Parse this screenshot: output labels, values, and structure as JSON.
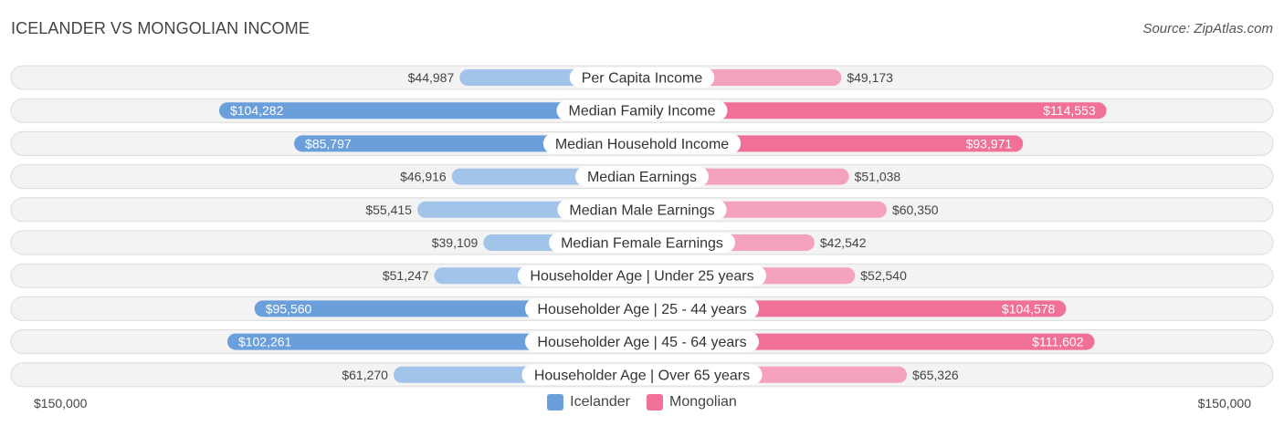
{
  "header": {
    "title": "ICELANDER VS MONGOLIAN INCOME",
    "source": "Source: ZipAtlas.com"
  },
  "chart_data": {
    "type": "bar",
    "orientation": "horizontal-diverging",
    "title": "ICELANDER VS MONGOLIAN INCOME",
    "categories": [
      "Per Capita Income",
      "Median Family Income",
      "Median Household Income",
      "Median Earnings",
      "Median Male Earnings",
      "Median Female Earnings",
      "Householder Age | Under 25 years",
      "Householder Age | 25 - 44 years",
      "Householder Age | 45 - 64 years",
      "Householder Age | Over 65 years"
    ],
    "series": [
      {
        "name": "Icelander",
        "color": "#6a9fdc",
        "light_color": "#a3c4ea",
        "values": [
          44987,
          104282,
          85797,
          46916,
          55415,
          39109,
          51247,
          95560,
          102261,
          61270
        ],
        "labels": [
          "$44,987",
          "$104,282",
          "$85,797",
          "$46,916",
          "$55,415",
          "$39,109",
          "$51,247",
          "$95,560",
          "$102,261",
          "$61,270"
        ]
      },
      {
        "name": "Mongolian",
        "color": "#f07098",
        "light_color": "#f5a2bd",
        "values": [
          49173,
          114553,
          93971,
          51038,
          60350,
          42542,
          52540,
          104578,
          111602,
          65326
        ],
        "labels": [
          "$49,173",
          "$114,553",
          "$93,971",
          "$51,038",
          "$60,350",
          "$42,542",
          "$52,540",
          "$104,578",
          "$111,602",
          "$65,326"
        ]
      }
    ],
    "xlim": [
      0,
      150000
    ],
    "axis_labels": {
      "left": "$150,000",
      "right": "$150,000"
    },
    "legend": [
      "Icelander",
      "Mongolian"
    ]
  }
}
